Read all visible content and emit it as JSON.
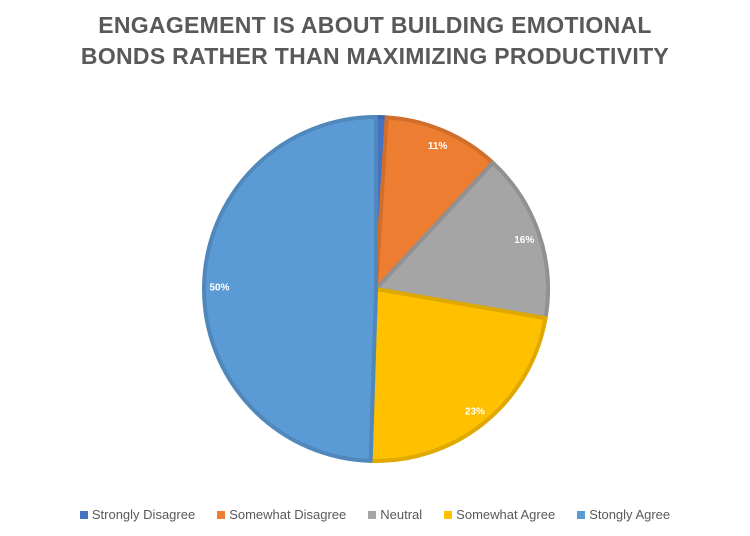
{
  "chart_data": {
    "type": "pie",
    "title_lines": [
      "ENGAGEMENT IS ABOUT BUILDING EMOTIONAL",
      "BONDS RATHER THAN MAXIMIZING PRODUCTIVITY"
    ],
    "categories": [
      "Strongly Disagree",
      "Somewhat Disagree",
      "Neutral",
      "Somewhat Agree",
      "Stongly Agree"
    ],
    "values": [
      1,
      11,
      16,
      23,
      50
    ],
    "labels": [
      "",
      "11%",
      "16%",
      "23%",
      "50%"
    ],
    "colors": [
      "#4472C4",
      "#ED7D31",
      "#A5A5A5",
      "#FFC000",
      "#5B9BD5"
    ],
    "legend_position": "bottom"
  }
}
